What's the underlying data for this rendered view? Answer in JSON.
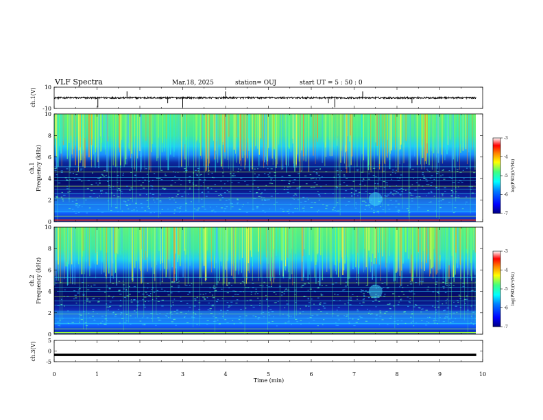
{
  "header": {
    "title": "VLF Spectra",
    "date": "Mar.18, 2025",
    "station": "station= OUJ",
    "start": "start UT =  5 : 50 : 0"
  },
  "colors": {
    "axes": "#000000",
    "spectrogram_colormap": [
      "#00007f",
      "#0000ff",
      "#0080ff",
      "#00ffff",
      "#40ff80",
      "#ffff00",
      "#ff8000",
      "#ff0000",
      "#ffffff"
    ]
  },
  "chart_data": [
    {
      "type": "line",
      "panel": "ch1-waveform",
      "ylabel": "ch.1(V)",
      "ylim": [
        -10,
        10
      ],
      "yticks": [
        "10",
        "-10"
      ],
      "baseline": 0,
      "spike_times_min": [
        1.02,
        1.7,
        2.65,
        3.0,
        4.0,
        6.4,
        6.55,
        7.2,
        8.35
      ]
    },
    {
      "type": "heatmap",
      "panel": "ch1-spectrogram",
      "ylabel": "ch.1\nFrequency (kHz)",
      "ylim": [
        0,
        10
      ],
      "yticks": [
        "0",
        "2",
        "4",
        "6",
        "8",
        "10"
      ],
      "colorbar": {
        "label": "log(PSD)(V²/Hz)",
        "ticks": [
          "-3",
          "-4",
          "-5",
          "-6",
          "-7"
        ],
        "range": [
          -7,
          -3
        ]
      }
    },
    {
      "type": "heatmap",
      "panel": "ch2-spectrogram",
      "ylabel": "ch.2\nFrequency (kHz)",
      "ylim": [
        0,
        10
      ],
      "yticks": [
        "0",
        "2",
        "4",
        "6",
        "8",
        "10"
      ],
      "colorbar": {
        "label": "log(PSD)(V²/Hz)",
        "ticks": [
          "-3",
          "-4",
          "-5",
          "-6",
          "-7"
        ],
        "range": [
          -7,
          -3
        ]
      }
    },
    {
      "type": "line",
      "panel": "ch3-waveform",
      "ylabel": "ch.3(V)",
      "ylim": [
        -5,
        5
      ],
      "yticks": [
        "5",
        "0",
        "-5"
      ],
      "baseline": -1.8
    }
  ],
  "xaxis": {
    "label": "Time (min)",
    "range": [
      0,
      10
    ],
    "ticks": [
      "0",
      "1",
      "2",
      "3",
      "4",
      "5",
      "6",
      "7",
      "8",
      "9",
      "10"
    ]
  }
}
